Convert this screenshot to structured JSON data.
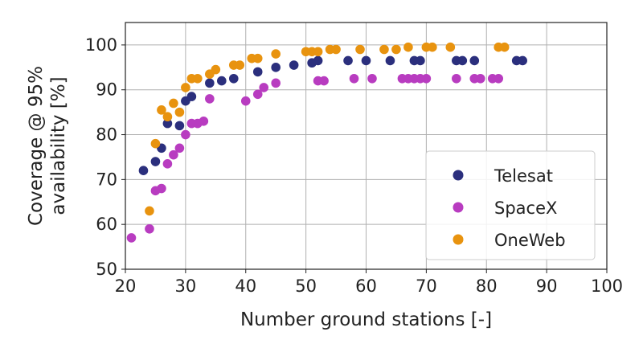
{
  "chart_data": {
    "type": "scatter",
    "xlabel": "Number ground stations [-]",
    "ylabel_lines": [
      "Coverage @ 95%",
      "availability [%]"
    ],
    "xlim": [
      20,
      100
    ],
    "ylim": [
      50,
      105
    ],
    "xticks": [
      20,
      30,
      40,
      50,
      60,
      70,
      80,
      90,
      100
    ],
    "yticks": [
      50,
      60,
      70,
      80,
      90,
      100
    ],
    "grid": true,
    "legend_position": "lower-right",
    "series": [
      {
        "name": "Telesat",
        "color": "#2b2f7d",
        "points": [
          [
            23,
            72
          ],
          [
            25,
            74
          ],
          [
            26,
            77
          ],
          [
            27,
            82.5
          ],
          [
            29,
            82
          ],
          [
            30,
            87.5
          ],
          [
            31,
            88.5
          ],
          [
            34,
            91.5
          ],
          [
            36,
            92
          ],
          [
            38,
            92.5
          ],
          [
            42,
            94
          ],
          [
            45,
            95
          ],
          [
            48,
            95.5
          ],
          [
            51,
            96
          ],
          [
            52,
            96.5
          ],
          [
            57,
            96.5
          ],
          [
            60,
            96.5
          ],
          [
            64,
            96.5
          ],
          [
            68,
            96.5
          ],
          [
            69,
            96.5
          ],
          [
            75,
            96.5
          ],
          [
            76,
            96.5
          ],
          [
            78,
            96.5
          ],
          [
            85,
            96.5
          ],
          [
            86,
            96.5
          ]
        ]
      },
      {
        "name": "SpaceX",
        "color": "#b83cc0",
        "points": [
          [
            21,
            57
          ],
          [
            24,
            59
          ],
          [
            25,
            67.5
          ],
          [
            26,
            68
          ],
          [
            27,
            73.5
          ],
          [
            28,
            75.5
          ],
          [
            29,
            77
          ],
          [
            30,
            80
          ],
          [
            31,
            82.5
          ],
          [
            32,
            82.5
          ],
          [
            33,
            83
          ],
          [
            34,
            88
          ],
          [
            40,
            87.5
          ],
          [
            42,
            89
          ],
          [
            43,
            90.5
          ],
          [
            45,
            91.5
          ],
          [
            52,
            92
          ],
          [
            53,
            92
          ],
          [
            58,
            92.5
          ],
          [
            61,
            92.5
          ],
          [
            66,
            92.5
          ],
          [
            67,
            92.5
          ],
          [
            68,
            92.5
          ],
          [
            69,
            92.5
          ],
          [
            70,
            92.5
          ],
          [
            75,
            92.5
          ],
          [
            78,
            92.5
          ],
          [
            79,
            92.5
          ],
          [
            81,
            92.5
          ],
          [
            82,
            92.5
          ]
        ]
      },
      {
        "name": "OneWeb",
        "color": "#e8930f",
        "points": [
          [
            24,
            63
          ],
          [
            25,
            78
          ],
          [
            26,
            85.5
          ],
          [
            27,
            84
          ],
          [
            28,
            87
          ],
          [
            29,
            85
          ],
          [
            30,
            90.5
          ],
          [
            31,
            92.5
          ],
          [
            32,
            92.5
          ],
          [
            34,
            93.5
          ],
          [
            35,
            94.5
          ],
          [
            38,
            95.5
          ],
          [
            39,
            95.5
          ],
          [
            41,
            97
          ],
          [
            42,
            97
          ],
          [
            45,
            98
          ],
          [
            50,
            98.5
          ],
          [
            51,
            98.5
          ],
          [
            52,
            98.5
          ],
          [
            54,
            99
          ],
          [
            55,
            99
          ],
          [
            59,
            99
          ],
          [
            63,
            99
          ],
          [
            65,
            99
          ],
          [
            67,
            99.5
          ],
          [
            70,
            99.5
          ],
          [
            71,
            99.5
          ],
          [
            74,
            99.5
          ],
          [
            82,
            99.5
          ],
          [
            83,
            99.5
          ]
        ]
      }
    ]
  }
}
